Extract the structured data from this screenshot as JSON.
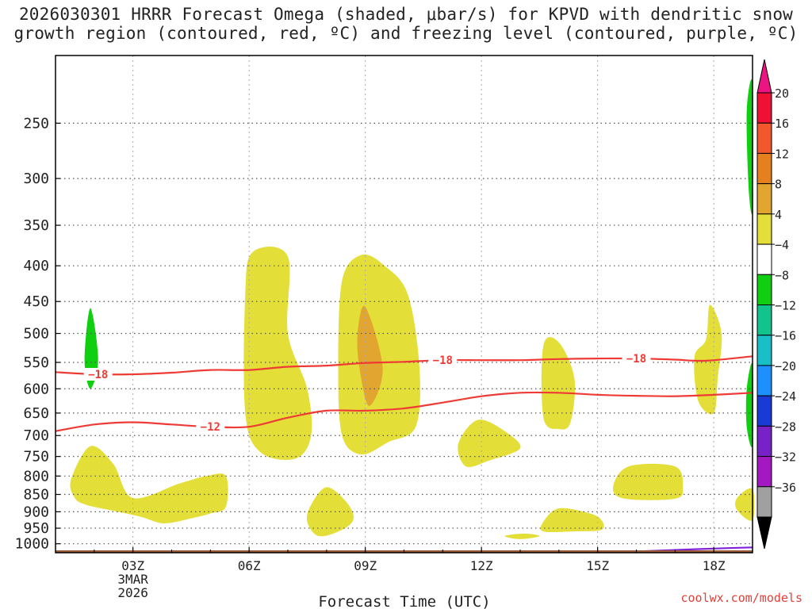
{
  "title_line1": "2026030301 HRRR Forecast Omega (shaded, μbar/s) for KPVD with dendritic snow",
  "title_line2": "growth region (contoured, red, ºC) and freezing level (contoured, purple, ºC)",
  "credit": "coolwx.com/models",
  "chart_data": {
    "type": "heatmap",
    "title": "2026030301 HRRR Forecast Omega (shaded, μbar/s) for KPVD with dendritic snow growth region (contoured, red, ºC) and freezing level (contoured, purple, ºC)",
    "xlabel": "Forecast Time (UTC)",
    "ylabel": "",
    "x_range_hours": [
      1,
      19
    ],
    "y_range_hPa": [
      200,
      1030
    ],
    "x_ticks": [
      {
        "hour": 3,
        "label": "03Z",
        "sub": [
          "3MAR",
          "2026"
        ]
      },
      {
        "hour": 6,
        "label": "06Z"
      },
      {
        "hour": 9,
        "label": "09Z"
      },
      {
        "hour": 12,
        "label": "12Z"
      },
      {
        "hour": 15,
        "label": "15Z"
      },
      {
        "hour": 18,
        "label": "18Z"
      }
    ],
    "y_ticks": [
      250,
      300,
      350,
      400,
      450,
      500,
      550,
      600,
      650,
      700,
      750,
      800,
      850,
      900,
      950,
      1000
    ],
    "colorbar": {
      "labels": [
        "20",
        "16",
        "12",
        "8",
        "4",
        "−4",
        "−8",
        "−12",
        "−16",
        "−20",
        "−24",
        "−28",
        "−32",
        "−36"
      ],
      "colors": [
        "#ee1133",
        "#f2572d",
        "#e6801f",
        "#e2a530",
        "#e4de38",
        "#ffffff",
        "#0fcf10",
        "#11c38c",
        "#19bfc6",
        "#1e8fff",
        "#1a3ad6",
        "#7722c8",
        "#a318c0",
        "#a0a0a0"
      ],
      "top_arrow_color": "#ec1480",
      "bottom_arrow_color": "#000000"
    },
    "omega_regions": [
      {
        "level": "4 to 8",
        "color": "#e4de38",
        "poly": [
          [
            1.4,
            810
          ],
          [
            1.9,
            725
          ],
          [
            2.5,
            770
          ],
          [
            3.0,
            860
          ],
          [
            4.2,
            820
          ],
          [
            4.9,
            800
          ],
          [
            5.4,
            800
          ],
          [
            5.4,
            885
          ],
          [
            5.0,
            905
          ],
          [
            4.5,
            920
          ],
          [
            3.8,
            935
          ],
          [
            3.2,
            915
          ],
          [
            2.4,
            895
          ],
          [
            1.8,
            880
          ],
          [
            1.5,
            860
          ]
        ]
      },
      {
        "level": "4 to 8",
        "color": "#e4de38",
        "poly": [
          [
            5.9,
            440
          ],
          [
            6.1,
            382
          ],
          [
            7.0,
            388
          ],
          [
            7.0,
            500
          ],
          [
            7.5,
            600
          ],
          [
            7.6,
            700
          ],
          [
            7.2,
            755
          ],
          [
            6.3,
            740
          ],
          [
            5.9,
            650
          ]
        ]
      },
      {
        "level": "4 to 8",
        "color": "#e4de38",
        "poly": [
          [
            8.4,
            420
          ],
          [
            8.9,
            386
          ],
          [
            9.5,
            400
          ],
          [
            10.1,
            440
          ],
          [
            10.4,
            560
          ],
          [
            10.3,
            680
          ],
          [
            9.6,
            715
          ],
          [
            8.9,
            745
          ],
          [
            8.4,
            700
          ],
          [
            8.3,
            560
          ]
        ]
      },
      {
        "level": "8 to 12",
        "color": "#e2a530",
        "poly": [
          [
            8.8,
            500
          ],
          [
            9.0,
            458
          ],
          [
            9.45,
            560
          ],
          [
            9.1,
            635
          ],
          [
            8.85,
            560
          ]
        ]
      },
      {
        "level": "4 to 8",
        "color": "#e4de38",
        "poly": [
          [
            7.6,
            880
          ],
          [
            8.0,
            830
          ],
          [
            8.5,
            870
          ],
          [
            8.7,
            920
          ],
          [
            8.4,
            955
          ],
          [
            7.8,
            975
          ],
          [
            7.5,
            930
          ]
        ]
      },
      {
        "level": "4 to 8",
        "color": "#e4de38",
        "poly": [
          [
            11.4,
            720
          ],
          [
            11.9,
            665
          ],
          [
            12.6,
            690
          ],
          [
            13.0,
            730
          ],
          [
            12.2,
            760
          ],
          [
            11.6,
            775
          ]
        ]
      },
      {
        "level": "4 to 8",
        "color": "#e4de38",
        "poly": [
          [
            13.6,
            520
          ],
          [
            14.0,
            515
          ],
          [
            14.4,
            580
          ],
          [
            14.3,
            670
          ],
          [
            14.0,
            685
          ],
          [
            13.6,
            660
          ]
        ]
      },
      {
        "level": "4 to 8",
        "color": "#e4de38",
        "poly": [
          [
            13.6,
            930
          ],
          [
            14.0,
            890
          ],
          [
            14.8,
            905
          ],
          [
            15.1,
            925
          ],
          [
            15.1,
            955
          ],
          [
            14.4,
            960
          ],
          [
            13.6,
            960
          ]
        ]
      },
      {
        "level": "4 to 8",
        "color": "#e4de38",
        "poly": [
          [
            12.6,
            975
          ],
          [
            13.1,
            967
          ],
          [
            13.5,
            975
          ],
          [
            13.0,
            985
          ]
        ]
      },
      {
        "level": "4 to 8",
        "color": "#e4de38",
        "poly": [
          [
            15.4,
            830
          ],
          [
            15.8,
            775
          ],
          [
            17.0,
            775
          ],
          [
            17.2,
            830
          ],
          [
            17.0,
            862
          ],
          [
            15.7,
            862
          ]
        ]
      },
      {
        "level": "4 to 8",
        "color": "#e4de38",
        "poly": [
          [
            17.5,
            540
          ],
          [
            17.8,
            510
          ],
          [
            17.9,
            455
          ],
          [
            18.2,
            500
          ],
          [
            18.1,
            580
          ],
          [
            18.0,
            650
          ],
          [
            17.6,
            625
          ]
        ]
      },
      {
        "level": "4 to 8",
        "color": "#e4de38",
        "poly": [
          [
            18.6,
            860
          ],
          [
            19.0,
            835
          ],
          [
            19.0,
            925
          ],
          [
            18.6,
            895
          ]
        ]
      },
      {
        "level": "-8 to -4",
        "color": "#0fcf10",
        "poly": [
          [
            1.75,
            545
          ],
          [
            1.9,
            460
          ],
          [
            2.1,
            545
          ],
          [
            1.9,
            600
          ]
        ]
      },
      {
        "level": "-8 to -4",
        "color": "#0fcf10",
        "poly": [
          [
            18.85,
            240
          ],
          [
            19.0,
            220
          ],
          [
            19.0,
            330
          ],
          [
            18.9,
            310
          ]
        ]
      },
      {
        "level": "-8 to -4",
        "color": "#0fcf10",
        "poly": [
          [
            18.85,
            600
          ],
          [
            19.0,
            555
          ],
          [
            19.0,
            720
          ],
          [
            18.85,
            680
          ]
        ]
      }
    ],
    "contours": [
      {
        "name": "-18 isotherm",
        "color": "#ee3b35",
        "points": [
          [
            1,
            568
          ],
          [
            2,
            572
          ],
          [
            3,
            572
          ],
          [
            4,
            569
          ],
          [
            5,
            564
          ],
          [
            6,
            564
          ],
          [
            7,
            558
          ],
          [
            8,
            556
          ],
          [
            9,
            551
          ],
          [
            10,
            549
          ],
          [
            11,
            546
          ],
          [
            12,
            546
          ],
          [
            13,
            546
          ],
          [
            14,
            544
          ],
          [
            15,
            543
          ],
          [
            16,
            543
          ],
          [
            17,
            545
          ],
          [
            17.8,
            547
          ],
          [
            19,
            539
          ]
        ],
        "labels": [
          {
            "text": "−18",
            "at": [
              2.1,
              572
            ]
          },
          {
            "text": "−18",
            "at": [
              11.0,
              546
            ]
          },
          {
            "text": "−18",
            "at": [
              16.0,
              543
            ]
          }
        ]
      },
      {
        "name": "-12 isotherm",
        "color": "#ee3b35",
        "points": [
          [
            1,
            690
          ],
          [
            2,
            675
          ],
          [
            3,
            670
          ],
          [
            4,
            675
          ],
          [
            5,
            680
          ],
          [
            6,
            680
          ],
          [
            7,
            660
          ],
          [
            8,
            645
          ],
          [
            9,
            645
          ],
          [
            10,
            640
          ],
          [
            11,
            628
          ],
          [
            12,
            615
          ],
          [
            13,
            608
          ],
          [
            14,
            608
          ],
          [
            15,
            612
          ],
          [
            16,
            614
          ],
          [
            17,
            615
          ],
          [
            18,
            612
          ],
          [
            19,
            608
          ]
        ],
        "labels": [
          {
            "text": "−12",
            "at": [
              5.0,
              680
            ]
          }
        ]
      },
      {
        "name": "freezing level",
        "color": "#8020d8",
        "points": [
          [
            16.2,
            1025
          ],
          [
            17,
            1021
          ],
          [
            18,
            1016
          ],
          [
            19,
            1012
          ]
        ],
        "labels": []
      }
    ],
    "ground": {
      "color": "#9b5a35",
      "pressure_hPa": 1022
    }
  }
}
